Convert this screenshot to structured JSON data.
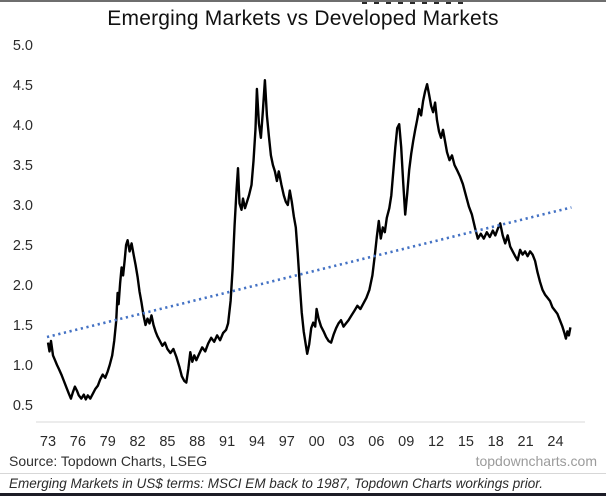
{
  "title": "Emerging Markets vs Developed Markets",
  "footer": {
    "source": "Source: Topdown Charts, LSEG",
    "website": "topdowncharts.com",
    "footnote": "Emerging Markets in US$ terms: MSCI EM back to 1987, Topdown Charts workings prior."
  },
  "colors": {
    "series_line": "#000000",
    "trend_line": "#4472c4",
    "tick_text": "#2b2b2b",
    "axis_line": "#d9d9d9"
  },
  "chart_data": {
    "type": "line",
    "title": "Emerging Markets vs Developed Markets",
    "xlabel": "",
    "ylabel": "",
    "ylim": [
      0.5,
      5.0
    ],
    "yticks": [
      5.0,
      4.5,
      4.0,
      3.5,
      3.0,
      2.5,
      2.0,
      1.5,
      1.0,
      0.5
    ],
    "ytick_labels": [
      "5.0",
      "4.5",
      "4.0",
      "3.5",
      "3.0",
      "2.5",
      "2.0",
      "1.5",
      "1.0",
      "0.5"
    ],
    "xtick_years": [
      1973,
      1976,
      1979,
      1982,
      1985,
      1988,
      1991,
      1994,
      1997,
      2000,
      2003,
      2006,
      2009,
      2012,
      2015,
      2018,
      2021,
      2024
    ],
    "xtick_labels": [
      "73",
      "76",
      "79",
      "82",
      "85",
      "88",
      "91",
      "94",
      "97",
      "00",
      "03",
      "06",
      "09",
      "12",
      "15",
      "18",
      "21",
      "24"
    ],
    "xlim": [
      1973,
      2026
    ],
    "grid": false,
    "legend": "none",
    "series": [
      {
        "name": "Emerging Markets vs Developed Markets ratio",
        "style": "solid",
        "color": "#000000",
        "width": 2.4,
        "points": [
          [
            1973.0,
            1.28
          ],
          [
            1973.15,
            1.17
          ],
          [
            1973.3,
            1.3
          ],
          [
            1973.5,
            1.12
          ],
          [
            1973.7,
            1.06
          ],
          [
            1973.9,
            1.0
          ],
          [
            1974.1,
            0.95
          ],
          [
            1974.35,
            0.88
          ],
          [
            1974.6,
            0.8
          ],
          [
            1974.85,
            0.72
          ],
          [
            1975.1,
            0.64
          ],
          [
            1975.3,
            0.58
          ],
          [
            1975.5,
            0.66
          ],
          [
            1975.7,
            0.73
          ],
          [
            1975.9,
            0.68
          ],
          [
            1976.1,
            0.62
          ],
          [
            1976.35,
            0.58
          ],
          [
            1976.6,
            0.63
          ],
          [
            1976.8,
            0.57
          ],
          [
            1977.0,
            0.62
          ],
          [
            1977.25,
            0.58
          ],
          [
            1977.5,
            0.64
          ],
          [
            1977.75,
            0.7
          ],
          [
            1978.0,
            0.74
          ],
          [
            1978.25,
            0.82
          ],
          [
            1978.5,
            0.88
          ],
          [
            1978.75,
            0.84
          ],
          [
            1979.0,
            0.92
          ],
          [
            1979.2,
            1.0
          ],
          [
            1979.45,
            1.12
          ],
          [
            1979.65,
            1.3
          ],
          [
            1979.85,
            1.55
          ],
          [
            1980.0,
            1.9
          ],
          [
            1980.1,
            1.76
          ],
          [
            1980.25,
            2.02
          ],
          [
            1980.4,
            2.22
          ],
          [
            1980.55,
            2.12
          ],
          [
            1980.7,
            2.3
          ],
          [
            1980.85,
            2.5
          ],
          [
            1981.0,
            2.56
          ],
          [
            1981.2,
            2.42
          ],
          [
            1981.4,
            2.52
          ],
          [
            1981.6,
            2.38
          ],
          [
            1981.8,
            2.25
          ],
          [
            1982.0,
            2.1
          ],
          [
            1982.2,
            1.92
          ],
          [
            1982.4,
            1.78
          ],
          [
            1982.6,
            1.62
          ],
          [
            1982.8,
            1.5
          ],
          [
            1983.0,
            1.58
          ],
          [
            1983.2,
            1.52
          ],
          [
            1983.4,
            1.62
          ],
          [
            1983.6,
            1.5
          ],
          [
            1983.8,
            1.42
          ],
          [
            1984.0,
            1.36
          ],
          [
            1984.25,
            1.3
          ],
          [
            1984.5,
            1.24
          ],
          [
            1984.75,
            1.28
          ],
          [
            1985.0,
            1.2
          ],
          [
            1985.3,
            1.15
          ],
          [
            1985.6,
            1.2
          ],
          [
            1985.9,
            1.1
          ],
          [
            1986.2,
            0.98
          ],
          [
            1986.45,
            0.86
          ],
          [
            1986.7,
            0.8
          ],
          [
            1986.9,
            0.78
          ],
          [
            1987.1,
            0.95
          ],
          [
            1987.3,
            1.16
          ],
          [
            1987.5,
            1.04
          ],
          [
            1987.7,
            1.12
          ],
          [
            1987.9,
            1.06
          ],
          [
            1988.2,
            1.14
          ],
          [
            1988.5,
            1.22
          ],
          [
            1988.8,
            1.17
          ],
          [
            1989.1,
            1.27
          ],
          [
            1989.4,
            1.34
          ],
          [
            1989.7,
            1.29
          ],
          [
            1990.0,
            1.37
          ],
          [
            1990.3,
            1.31
          ],
          [
            1990.6,
            1.4
          ],
          [
            1990.9,
            1.44
          ],
          [
            1991.1,
            1.52
          ],
          [
            1991.35,
            1.8
          ],
          [
            1991.55,
            2.2
          ],
          [
            1991.75,
            2.75
          ],
          [
            1991.95,
            3.2
          ],
          [
            1992.1,
            3.46
          ],
          [
            1992.25,
            3.02
          ],
          [
            1992.45,
            2.94
          ],
          [
            1992.6,
            3.08
          ],
          [
            1992.8,
            2.96
          ],
          [
            1993.0,
            3.04
          ],
          [
            1993.2,
            3.12
          ],
          [
            1993.45,
            3.25
          ],
          [
            1993.65,
            3.55
          ],
          [
            1993.85,
            3.95
          ],
          [
            1994.0,
            4.45
          ],
          [
            1994.2,
            4.02
          ],
          [
            1994.4,
            3.84
          ],
          [
            1994.6,
            4.18
          ],
          [
            1994.8,
            4.56
          ],
          [
            1995.0,
            4.12
          ],
          [
            1995.2,
            3.86
          ],
          [
            1995.4,
            3.62
          ],
          [
            1995.6,
            3.5
          ],
          [
            1995.8,
            3.42
          ],
          [
            1996.0,
            3.3
          ],
          [
            1996.2,
            3.42
          ],
          [
            1996.45,
            3.26
          ],
          [
            1996.7,
            3.12
          ],
          [
            1996.9,
            3.04
          ],
          [
            1997.1,
            3.0
          ],
          [
            1997.3,
            3.18
          ],
          [
            1997.5,
            3.04
          ],
          [
            1997.7,
            2.86
          ],
          [
            1997.9,
            2.72
          ],
          [
            1998.1,
            2.4
          ],
          [
            1998.3,
            2.02
          ],
          [
            1998.5,
            1.66
          ],
          [
            1998.7,
            1.42
          ],
          [
            1998.9,
            1.26
          ],
          [
            1999.05,
            1.14
          ],
          [
            1999.25,
            1.26
          ],
          [
            1999.45,
            1.46
          ],
          [
            1999.65,
            1.53
          ],
          [
            1999.85,
            1.48
          ],
          [
            2000.0,
            1.7
          ],
          [
            2000.2,
            1.58
          ],
          [
            2000.45,
            1.48
          ],
          [
            2000.7,
            1.42
          ],
          [
            2000.95,
            1.35
          ],
          [
            2001.2,
            1.3
          ],
          [
            2001.45,
            1.28
          ],
          [
            2001.7,
            1.38
          ],
          [
            2001.95,
            1.46
          ],
          [
            2002.2,
            1.52
          ],
          [
            2002.45,
            1.56
          ],
          [
            2002.7,
            1.48
          ],
          [
            2002.95,
            1.52
          ],
          [
            2003.2,
            1.56
          ],
          [
            2003.5,
            1.62
          ],
          [
            2003.8,
            1.68
          ],
          [
            2004.1,
            1.74
          ],
          [
            2004.4,
            1.7
          ],
          [
            2004.7,
            1.77
          ],
          [
            2005.0,
            1.84
          ],
          [
            2005.3,
            1.94
          ],
          [
            2005.6,
            2.12
          ],
          [
            2005.85,
            2.38
          ],
          [
            2006.05,
            2.6
          ],
          [
            2006.25,
            2.8
          ],
          [
            2006.45,
            2.58
          ],
          [
            2006.65,
            2.72
          ],
          [
            2006.85,
            2.66
          ],
          [
            2007.05,
            2.84
          ],
          [
            2007.3,
            2.96
          ],
          [
            2007.5,
            3.12
          ],
          [
            2007.7,
            3.42
          ],
          [
            2007.9,
            3.72
          ],
          [
            2008.1,
            3.96
          ],
          [
            2008.3,
            4.01
          ],
          [
            2008.5,
            3.72
          ],
          [
            2008.7,
            3.28
          ],
          [
            2008.9,
            2.88
          ],
          [
            2009.1,
            3.14
          ],
          [
            2009.3,
            3.44
          ],
          [
            2009.5,
            3.64
          ],
          [
            2009.7,
            3.8
          ],
          [
            2009.9,
            3.94
          ],
          [
            2010.1,
            4.06
          ],
          [
            2010.3,
            4.2
          ],
          [
            2010.5,
            4.12
          ],
          [
            2010.7,
            4.3
          ],
          [
            2010.9,
            4.42
          ],
          [
            2011.1,
            4.51
          ],
          [
            2011.3,
            4.38
          ],
          [
            2011.5,
            4.24
          ],
          [
            2011.7,
            4.16
          ],
          [
            2011.9,
            4.28
          ],
          [
            2012.1,
            4.06
          ],
          [
            2012.3,
            3.92
          ],
          [
            2012.5,
            3.84
          ],
          [
            2012.7,
            3.94
          ],
          [
            2012.9,
            3.8
          ],
          [
            2013.1,
            3.66
          ],
          [
            2013.35,
            3.56
          ],
          [
            2013.6,
            3.62
          ],
          [
            2013.85,
            3.5
          ],
          [
            2014.1,
            3.44
          ],
          [
            2014.4,
            3.36
          ],
          [
            2014.7,
            3.26
          ],
          [
            2015.0,
            3.12
          ],
          [
            2015.3,
            2.98
          ],
          [
            2015.6,
            2.88
          ],
          [
            2015.9,
            2.72
          ],
          [
            2016.2,
            2.58
          ],
          [
            2016.5,
            2.64
          ],
          [
            2016.8,
            2.58
          ],
          [
            2017.1,
            2.66
          ],
          [
            2017.4,
            2.6
          ],
          [
            2017.7,
            2.68
          ],
          [
            2017.95,
            2.62
          ],
          [
            2018.2,
            2.7
          ],
          [
            2018.45,
            2.77
          ],
          [
            2018.7,
            2.62
          ],
          [
            2018.95,
            2.52
          ],
          [
            2019.2,
            2.62
          ],
          [
            2019.45,
            2.48
          ],
          [
            2019.7,
            2.42
          ],
          [
            2019.95,
            2.36
          ],
          [
            2020.2,
            2.31
          ],
          [
            2020.45,
            2.44
          ],
          [
            2020.7,
            2.38
          ],
          [
            2020.95,
            2.42
          ],
          [
            2021.2,
            2.36
          ],
          [
            2021.45,
            2.42
          ],
          [
            2021.7,
            2.38
          ],
          [
            2021.95,
            2.3
          ],
          [
            2022.2,
            2.16
          ],
          [
            2022.45,
            2.04
          ],
          [
            2022.7,
            1.94
          ],
          [
            2022.95,
            1.88
          ],
          [
            2023.2,
            1.84
          ],
          [
            2023.45,
            1.8
          ],
          [
            2023.7,
            1.72
          ],
          [
            2023.95,
            1.68
          ],
          [
            2024.2,
            1.64
          ],
          [
            2024.45,
            1.56
          ],
          [
            2024.7,
            1.48
          ],
          [
            2024.9,
            1.4
          ],
          [
            2025.05,
            1.33
          ],
          [
            2025.2,
            1.42
          ],
          [
            2025.35,
            1.37
          ],
          [
            2025.5,
            1.47
          ]
        ]
      },
      {
        "name": "Linear trend",
        "style": "dotted",
        "color": "#4472c4",
        "width": 2.6,
        "points": [
          [
            1972.9,
            1.35
          ],
          [
            2025.6,
            2.97
          ]
        ]
      }
    ]
  }
}
